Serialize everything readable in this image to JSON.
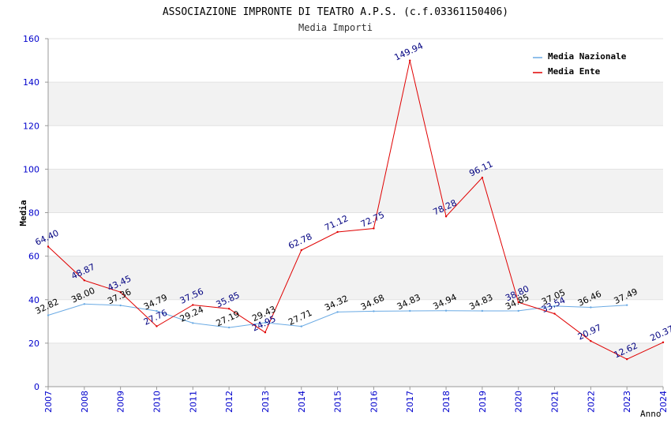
{
  "chart_data": {
    "type": "line",
    "title": "ASSOCIAZIONE IMPRONTE DI TEATRO A.P.S. (c.f.03361150406)",
    "subtitle": "Media Importi",
    "xlabel": "Anno",
    "ylabel": "Media",
    "ylim": [
      0,
      160
    ],
    "yticks": [
      0,
      20,
      40,
      60,
      80,
      100,
      120,
      140,
      160
    ],
    "x": [
      "2007",
      "2008",
      "2009",
      "2010",
      "2011",
      "2012",
      "2013",
      "2014",
      "2015",
      "2016",
      "2017",
      "2018",
      "2019",
      "2020",
      "2021",
      "2022",
      "2023",
      "2024"
    ],
    "legend_position": "top-right",
    "series": [
      {
        "name": "Media Nazionale",
        "color": "#6aaae4",
        "label_color": "#000000",
        "values": [
          32.82,
          38.0,
          37.36,
          34.79,
          29.24,
          27.19,
          29.43,
          27.71,
          34.32,
          34.68,
          34.83,
          34.94,
          34.83,
          34.85,
          37.05,
          36.46,
          37.49,
          null
        ],
        "labels": [
          "32.82",
          "38.00",
          "37.36",
          "34.79",
          "29.24",
          "27.19",
          "29.43",
          "27.71",
          "34.32",
          "34.68",
          "34.83",
          "34.94",
          "34.83",
          "34.85",
          "37.05",
          "36.46",
          "37.49",
          null
        ]
      },
      {
        "name": "Media Ente",
        "color": "#e00000",
        "label_color": "#000080",
        "values": [
          64.4,
          48.87,
          43.45,
          27.76,
          37.56,
          35.85,
          24.95,
          62.78,
          71.12,
          72.75,
          149.94,
          78.28,
          96.11,
          38.8,
          33.54,
          20.97,
          12.62,
          20.37
        ],
        "labels": [
          "64.40",
          "48.87",
          "43.45",
          "27.76",
          "37.56",
          "35.85",
          "24.95",
          "62.78",
          "71.12",
          "72.75",
          "149.94",
          "78.28",
          "96.11",
          "38.80",
          "33.54",
          "20.97",
          "12.62",
          "20.37"
        ]
      }
    ],
    "colors": {
      "axis_tick_text": "#0000cc",
      "band": "#f2f2f2",
      "grid": "#e2e2e2",
      "axis": "#999999"
    }
  }
}
